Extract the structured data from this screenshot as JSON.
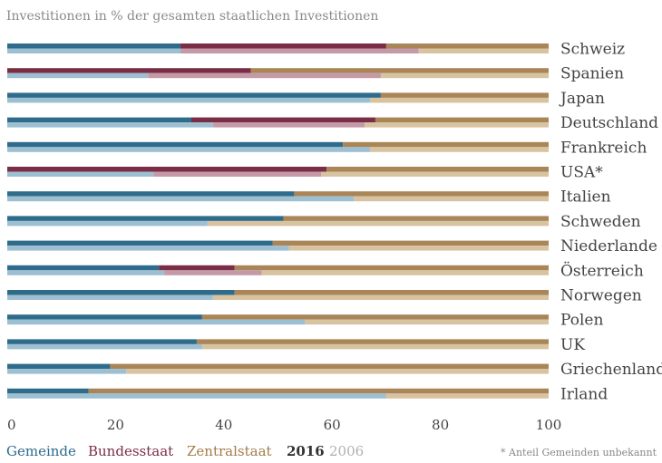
{
  "chart_data": {
    "type": "bar",
    "orientation": "horizontal",
    "stacked": true,
    "title": "Investitionen in % der gesamten staatlichen Investitionen",
    "categories": [
      "Schweiz",
      "Spanien",
      "Japan",
      "Deutschland",
      "Frankreich",
      "USA*",
      "Italien",
      "Schweden",
      "Niederlande",
      "Österreich",
      "Norwegen",
      "Polen",
      "UK",
      "Griechenland",
      "Irland"
    ],
    "xlim": [
      0,
      100
    ],
    "xticks": [
      "0",
      "20",
      "40",
      "60",
      "80",
      "100"
    ],
    "segments": [
      "Gemeinde",
      "Bundesstaat",
      "Zentralstaat"
    ],
    "colors": {
      "Gemeinde_2016": "#2f6c8c",
      "Bundesstaat_2016": "#7a2e45",
      "Zentralstaat_2016": "#a98557",
      "Gemeinde_2006": "#9dbfd2",
      "Bundesstaat_2006": "#c49aa8",
      "Zentralstaat_2006": "#d8c3a0"
    },
    "series": [
      {
        "year": "2016",
        "Gemeinde": [
          32,
          0,
          69,
          34,
          62,
          0,
          53,
          51,
          49,
          28,
          42,
          36,
          35,
          19,
          15
        ],
        "Bundesstaat": [
          38,
          45,
          0,
          34,
          0,
          59,
          0,
          0,
          0,
          14,
          0,
          0,
          0,
          0,
          0
        ]
      },
      {
        "year": "2006",
        "Gemeinde": [
          32,
          26,
          67,
          38,
          67,
          27,
          64,
          37,
          52,
          29,
          38,
          55,
          36,
          22,
          70
        ],
        "Bundesstaat": [
          44,
          43,
          0,
          28,
          0,
          31,
          0,
          0,
          0,
          18,
          0,
          0,
          0,
          0,
          0
        ]
      }
    ],
    "legend": {
      "entries": [
        "Gemeinde",
        "Bundesstaat",
        "Zentralstaat"
      ],
      "years": [
        "2016",
        "2006"
      ],
      "placement": "bottom"
    },
    "footnote": "* Anteil Gemeinden unbekannt"
  }
}
